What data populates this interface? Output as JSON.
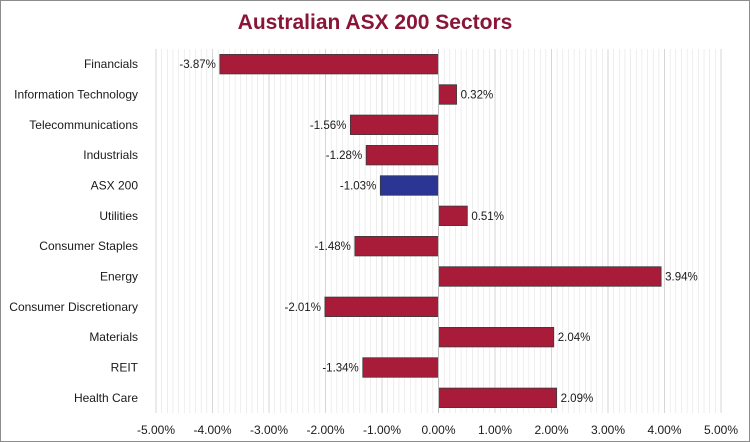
{
  "chart_data": {
    "type": "bar",
    "orientation": "horizontal",
    "title": "Australian ASX 200 Sectors",
    "categories": [
      "Financials",
      "Information Technology",
      "Telecommunications",
      "Industrials",
      "ASX 200",
      "Utilities",
      "Consumer Staples",
      "Energy",
      "Consumer Discretionary",
      "Materials",
      "REIT",
      "Health Care"
    ],
    "values": [
      -3.87,
      0.32,
      -1.56,
      -1.28,
      -1.03,
      0.51,
      -1.48,
      3.94,
      -2.01,
      2.04,
      -1.34,
      2.09
    ],
    "value_labels": [
      "-3.87%",
      "0.32%",
      "-1.56%",
      "-1.28%",
      "-1.03%",
      "0.51%",
      "-1.48%",
      "3.94%",
      "-2.01%",
      "2.04%",
      "-1.34%",
      "2.09%"
    ],
    "xlim": [
      -5,
      5
    ],
    "x_ticks": [
      -5,
      -4,
      -3,
      -2,
      -1,
      0,
      1,
      2,
      3,
      4,
      5
    ],
    "x_tick_labels": [
      "-5.00%",
      "-4.00%",
      "-3.00%",
      "-2.00%",
      "-1.00%",
      "0.00%",
      "1.00%",
      "2.00%",
      "3.00%",
      "4.00%",
      "5.00%"
    ],
    "xlabel": "",
    "ylabel": "",
    "grid": "vertical minor and major",
    "legend": "none",
    "colors": {
      "sector": "#a81c3a",
      "index": "#2a3594",
      "title": "#8a1538",
      "bar_edge": "#3a3a3a",
      "grid": "#e3e3e3"
    },
    "highlight_category": "ASX 200"
  }
}
